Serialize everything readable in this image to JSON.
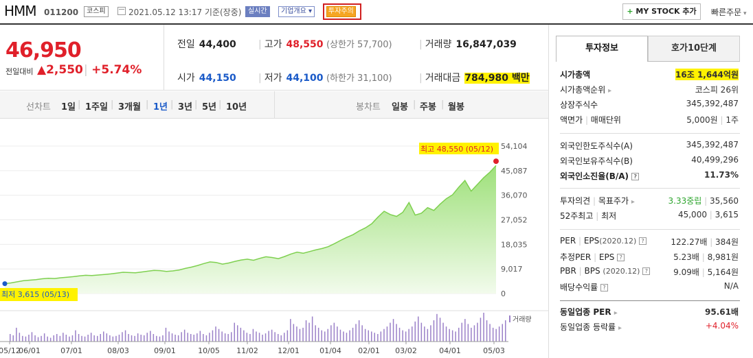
{
  "header": {
    "name": "HMM",
    "code": "011200",
    "market": "코스피",
    "datetime": "2021.05.12 13:17 기준(장중)",
    "realtime_badge": "실시간",
    "corp_dropdown": "기업개요",
    "warn_badge": "투자주의",
    "mystock_button": "MY STOCK 추가",
    "quick_order": "빠른주문"
  },
  "price": {
    "current": "46,950",
    "compare_label": "전일대비",
    "change": "2,550",
    "change_pct": "+5.74%",
    "prev_label": "전일",
    "prev_value": "44,400",
    "high_label": "고가",
    "high_value": "48,550",
    "high_limit": "(상한가 57,700)",
    "volume_label": "거래량",
    "volume_value": "16,847,039",
    "open_label": "시가",
    "open_value": "44,150",
    "low_label": "저가",
    "low_value": "44,100",
    "low_limit": "(하한가 31,100)",
    "amount_label": "거래대금",
    "amount_value": "784,980",
    "amount_unit": "백만"
  },
  "chart_tabs": {
    "line_label": "선차트",
    "periods": [
      "1일",
      "1주일",
      "3개월",
      "1년",
      "3년",
      "5년",
      "10년"
    ],
    "selected_period": "1년",
    "candle_label": "봉차트",
    "candles": [
      "일봉",
      "주봉",
      "월봉"
    ]
  },
  "chart_data": {
    "type": "area",
    "x_ticks": [
      "05/12",
      "06/01",
      "07/01",
      "08/03",
      "09/01",
      "10/05",
      "11/02",
      "12/01",
      "01/04",
      "02/01",
      "03/02",
      "04/01",
      "05/03"
    ],
    "y_ticks": [
      "54,104",
      "45,087",
      "36,070",
      "27,052",
      "18,035",
      "9,017",
      "0"
    ],
    "ylim": [
      0,
      54104
    ],
    "series": [
      {
        "values": [
          3615,
          3900,
          4300,
          4700,
          4900,
          5100,
          5400,
          5600,
          5500,
          5800,
          6000,
          6200,
          6500,
          6700,
          6600,
          6800,
          7000,
          7200,
          7500,
          7800,
          7700,
          7600,
          7900,
          8200,
          8500,
          8400,
          8100,
          8300,
          8600,
          9200,
          9700,
          10300,
          11000,
          11600,
          11400,
          10800,
          11200,
          11800,
          12300,
          12600,
          12200,
          12900,
          13500,
          13200,
          12800,
          13600,
          14500,
          15200,
          14800,
          15400,
          16000,
          16500,
          17200,
          18300,
          19500,
          20600,
          21600,
          23000,
          24100,
          25600,
          28000,
          30200,
          29000,
          28300,
          29800,
          33400,
          28800,
          29500,
          31500,
          30500,
          32800,
          34800,
          36200,
          39000,
          41500,
          37600,
          40000,
          42500,
          44500,
          46950
        ]
      }
    ],
    "high_annotation": "최고 48,550 (05/12)",
    "low_annotation": "최저 3,615 (05/13)",
    "volume_label": "거래량",
    "volume": [
      12,
      10,
      22,
      14,
      9,
      8,
      11,
      15,
      10,
      7,
      9,
      13,
      8,
      6,
      10,
      12,
      9,
      14,
      11,
      8,
      10,
      18,
      12,
      9,
      8,
      11,
      14,
      10,
      9,
      12,
      16,
      13,
      10,
      8,
      9,
      11,
      15,
      18,
      12,
      10,
      9,
      13,
      11,
      10,
      14,
      17,
      12,
      9,
      8,
      10,
      22,
      16,
      13,
      11,
      10,
      15,
      19,
      14,
      12,
      11,
      13,
      17,
      12,
      10,
      14,
      18,
      24,
      20,
      16,
      13,
      12,
      15,
      30,
      26,
      22,
      18,
      14,
      12,
      20,
      16,
      14,
      11,
      13,
      17,
      19,
      15,
      12,
      10,
      14,
      18,
      36,
      28,
      24,
      20,
      22,
      34,
      30,
      40,
      26,
      22,
      18,
      16,
      20,
      26,
      30,
      24,
      19,
      16,
      14,
      18,
      22,
      28,
      34,
      26,
      20,
      18,
      16,
      14,
      12,
      16,
      20,
      24,
      30,
      36,
      28,
      22,
      18,
      16,
      20,
      24,
      32,
      40,
      30,
      24,
      20,
      26,
      34,
      44,
      38,
      30,
      24,
      20,
      18,
      16,
      22,
      30,
      36,
      28,
      22,
      26,
      30,
      38,
      46,
      34,
      28,
      22,
      20,
      24,
      28,
      34
    ]
  },
  "info_panel": {
    "tab_active": "투자정보",
    "tab_other": "호가10단계",
    "market_cap_label": "시가총액",
    "market_cap_value": "16조 1,644억원",
    "market_cap_rank_label": "시가총액순위",
    "market_cap_rank_value": "코스피 26위",
    "shares_label": "상장주식수",
    "shares_value": "345,392,487",
    "par_label": "액면가",
    "unit_label": "매매단위",
    "par_value": "5,000원",
    "unit_value": "1주",
    "foreign_limit_label": "외국인한도주식수(A)",
    "foreign_limit_value": "345,392,487",
    "foreign_hold_label": "외국인보유주식수(B)",
    "foreign_hold_value": "40,499,296",
    "foreign_ratio_label": "외국인소진율(B/A)",
    "foreign_ratio_value": "11.73%",
    "opinion_label": "투자의견",
    "target_label": "목표주가",
    "opinion_value": "3.33중립",
    "target_value": "35,560",
    "week52_high_label": "52주최고",
    "week52_low_label": "최저",
    "week52_high_value": "45,000",
    "week52_low_value": "3,615",
    "per_label": "PER",
    "eps_label": "EPS",
    "per_period": "(2020.12)",
    "per_value": "122.27배",
    "eps_value": "384원",
    "est_per_label": "추정PER",
    "est_eps_label": "EPS",
    "est_per_value": "5.23배",
    "est_eps_value": "8,981원",
    "pbr_label": "PBR",
    "bps_label": "BPS",
    "pbr_period": "(2020.12)",
    "pbr_value": "9.09배",
    "bps_value": "5,164원",
    "div_label": "배당수익률",
    "div_value": "N/A",
    "same_per_label": "동일업종 PER",
    "same_per_value": "95.61배",
    "same_rate_label": "동일업종 등락률",
    "same_rate_value": "+4.04%"
  }
}
